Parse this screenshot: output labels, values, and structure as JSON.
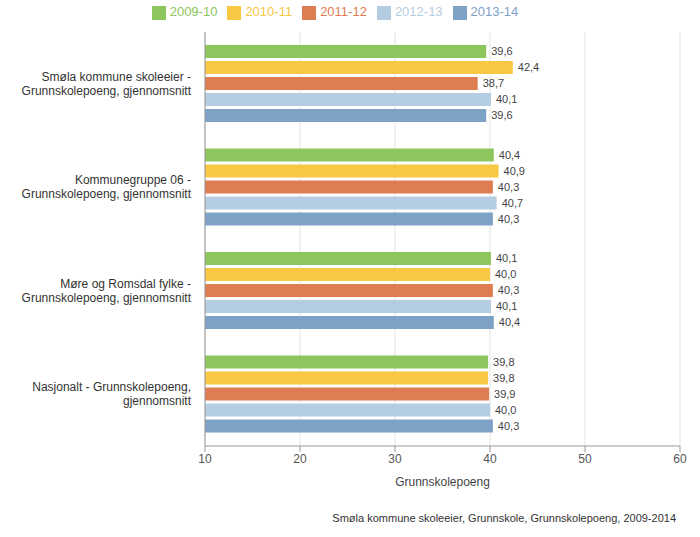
{
  "chart_data": {
    "type": "bar",
    "orientation": "horizontal",
    "legend": "top",
    "grid": true,
    "data_labels": true,
    "x_label": "Grunnskolepoeng",
    "annotations": [
      "Smøla kommune skoleeier, Grunnskole, Grunnskolepoeng, 2009-2014"
    ],
    "categories": [
      "Smøla kommune skoleeier - Grunnskolepoeng, gjennomsnitt",
      "Kommunegruppe 06 - Grunnskolepoeng, gjennomsnitt",
      "Møre og Romsdal fylke - Grunnskolepoeng, gjennomsnitt",
      "Nasjonalt - Grunnskolepoeng, gjennomsnitt"
    ],
    "xlim": [
      10,
      60
    ],
    "xticks": [
      10,
      20,
      30,
      40,
      50,
      60
    ],
    "series": [
      {
        "name": "2009-10",
        "color": "#8cc65c",
        "values": [
          39.6,
          40.4,
          40.1,
          39.8
        ],
        "value_labels": [
          "39,6",
          "40,4",
          "40,1",
          "39,8"
        ]
      },
      {
        "name": "2010-11",
        "color": "#f8c743",
        "values": [
          42.4,
          40.9,
          40.0,
          39.8
        ],
        "value_labels": [
          "42,4",
          "40,9",
          "40,0",
          "39,8"
        ]
      },
      {
        "name": "2011-12",
        "color": "#de7c52",
        "values": [
          38.7,
          40.3,
          40.3,
          39.9
        ],
        "value_labels": [
          "38,7",
          "40,3",
          "40,3",
          "39,9"
        ]
      },
      {
        "name": "2012-13",
        "color": "#b5cde2",
        "values": [
          40.1,
          40.7,
          40.1,
          40.0
        ],
        "value_labels": [
          "40,1",
          "40,7",
          "40,1",
          "40,0"
        ]
      },
      {
        "name": "2013-14",
        "color": "#7ea2c6",
        "values": [
          39.6,
          40.3,
          40.4,
          40.3
        ],
        "value_labels": [
          "39,6",
          "40,3",
          "40,4",
          "40,3"
        ]
      }
    ]
  }
}
